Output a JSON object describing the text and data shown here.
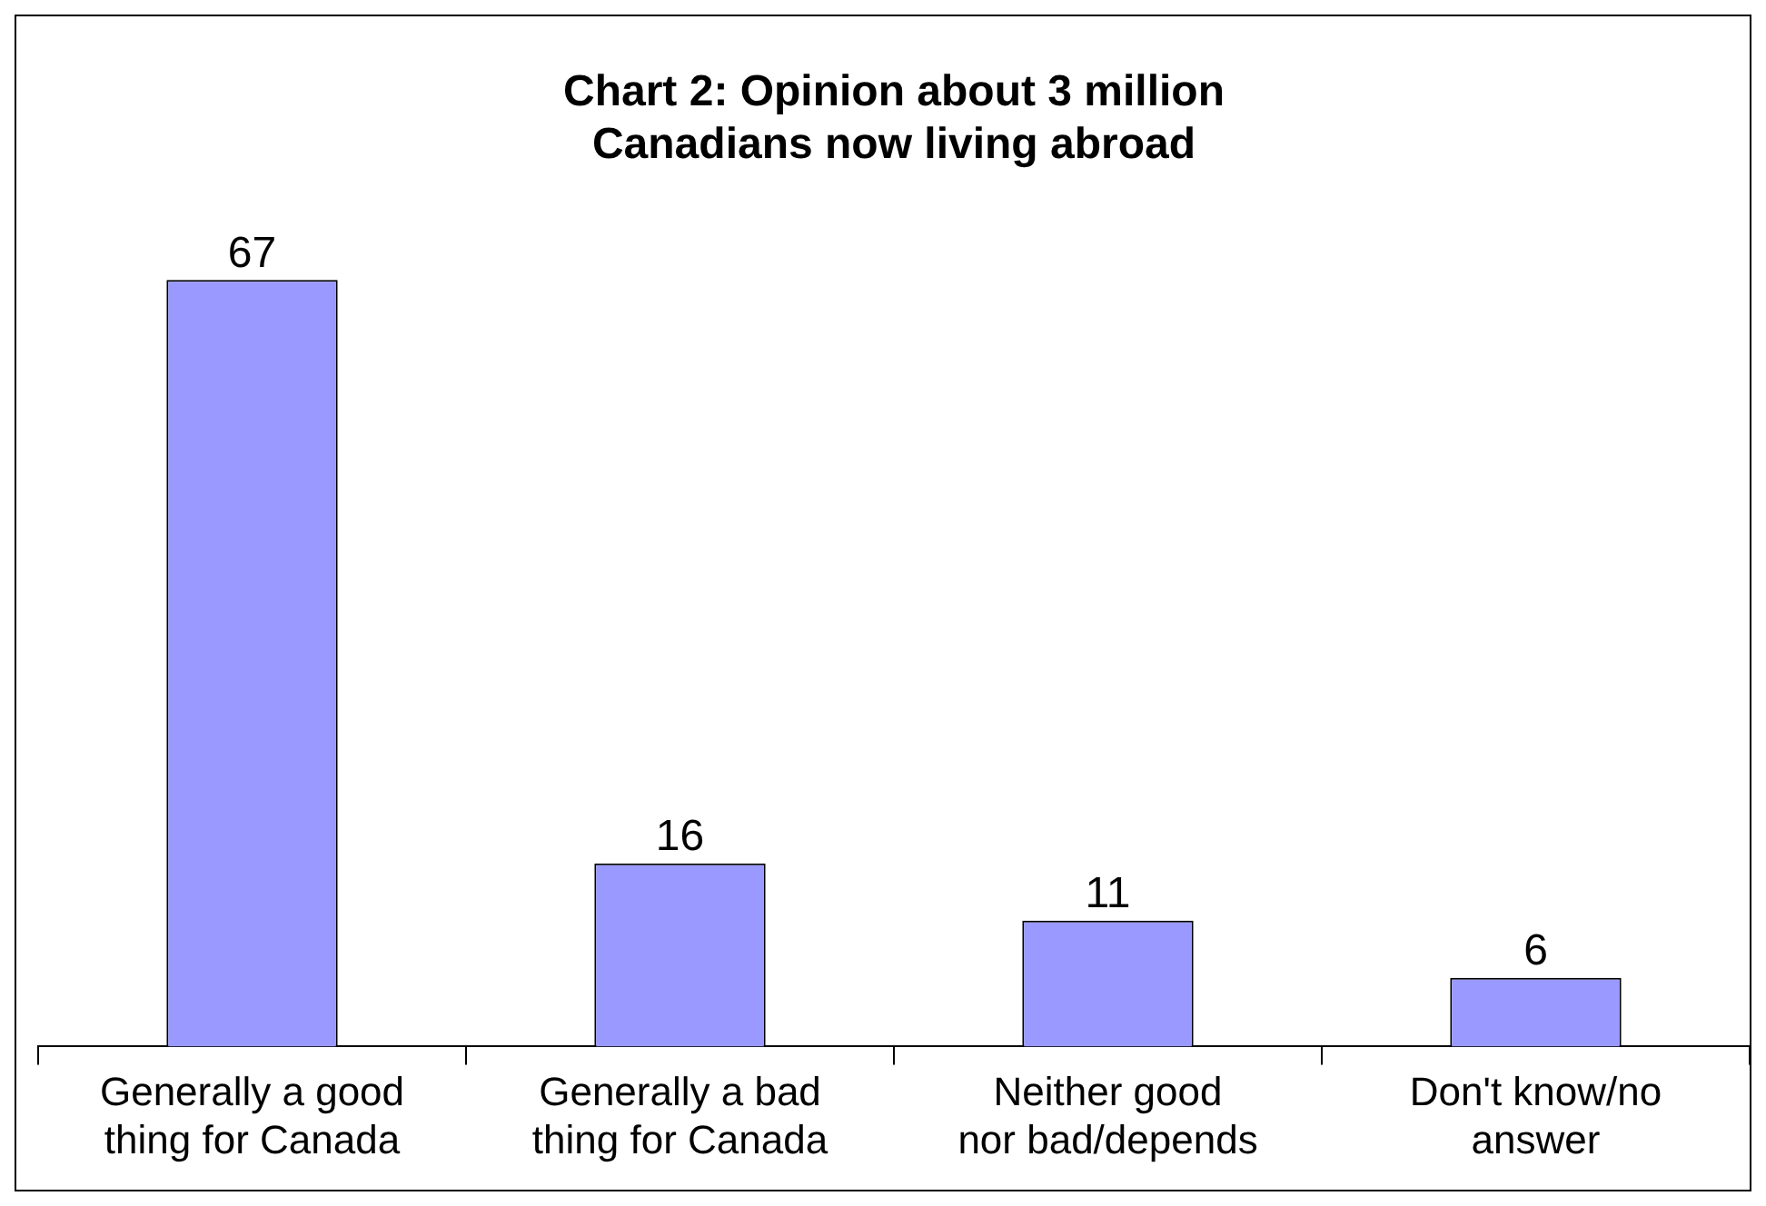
{
  "chart_data": {
    "type": "bar",
    "title": "Chart 2: Opinion about 3 million Canadians now living abroad",
    "categories": [
      "Generally a good thing for Canada",
      "Generally a bad thing for Canada",
      "Neither good nor bad/depends",
      "Don't know/no answer"
    ],
    "values": [
      67,
      16,
      11,
      6
    ],
    "color": "#9999ff",
    "data_labels": true,
    "grid": false,
    "legend": false
  }
}
